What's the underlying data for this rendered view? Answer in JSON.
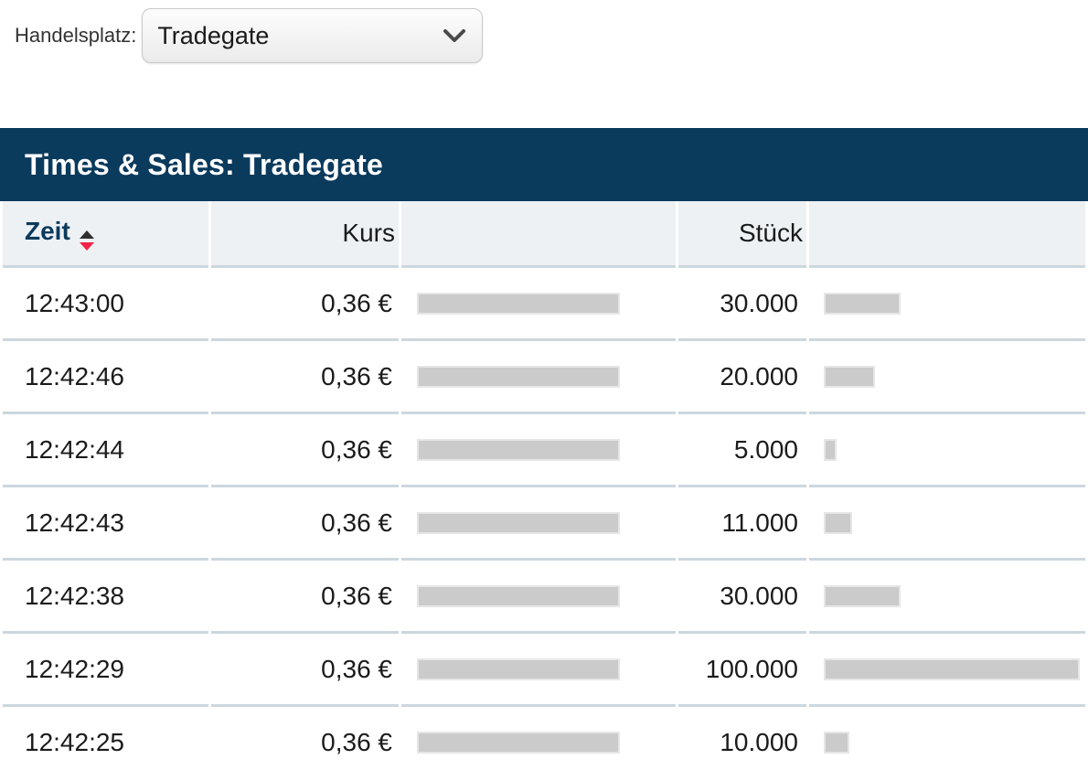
{
  "toolbar": {
    "handelsplatz_label": "Handelsplatz:",
    "market_select": {
      "value": "Tradegate",
      "icon": "chevron-down-icon"
    }
  },
  "panel": {
    "title": "Times & Sales: Tradegate"
  },
  "table": {
    "columns": {
      "zeit": "Zeit",
      "kurs": "Kurs",
      "stueck": "Stück"
    },
    "sort": {
      "column": "Zeit",
      "direction": "desc",
      "icon": "sort-arrows-icon"
    },
    "rows": [
      {
        "zeit": "12:43:00",
        "kurs": "0,36 €",
        "stueck": "30.000",
        "kurs_bar": 222,
        "stueck_bar": 84
      },
      {
        "zeit": "12:42:46",
        "kurs": "0,36 €",
        "stueck": "20.000",
        "kurs_bar": 222,
        "stueck_bar": 56
      },
      {
        "zeit": "12:42:44",
        "kurs": "0,36 €",
        "stueck": "5.000",
        "kurs_bar": 222,
        "stueck_bar": 14
      },
      {
        "zeit": "12:42:43",
        "kurs": "0,36 €",
        "stueck": "11.000",
        "kurs_bar": 222,
        "stueck_bar": 31
      },
      {
        "zeit": "12:42:38",
        "kurs": "0,36 €",
        "stueck": "30.000",
        "kurs_bar": 222,
        "stueck_bar": 84
      },
      {
        "zeit": "12:42:29",
        "kurs": "0,36 €",
        "stueck": "100.000",
        "kurs_bar": 222,
        "stueck_bar": 280
      },
      {
        "zeit": "12:42:25",
        "kurs": "0,36 €",
        "stueck": "10.000",
        "kurs_bar": 222,
        "stueck_bar": 28
      }
    ]
  },
  "colors": {
    "header_navy": "#0a3a5c",
    "header_row_bg": "#edf1f4",
    "row_separator": "#ccd7de",
    "bar_fill": "#cbcbcb",
    "bar_border": "#e6e6e6",
    "sort_desc_red": "#f32146",
    "sort_asc_dark": "#2f2f2f",
    "zeit_header_text": "#0a3a5c"
  }
}
